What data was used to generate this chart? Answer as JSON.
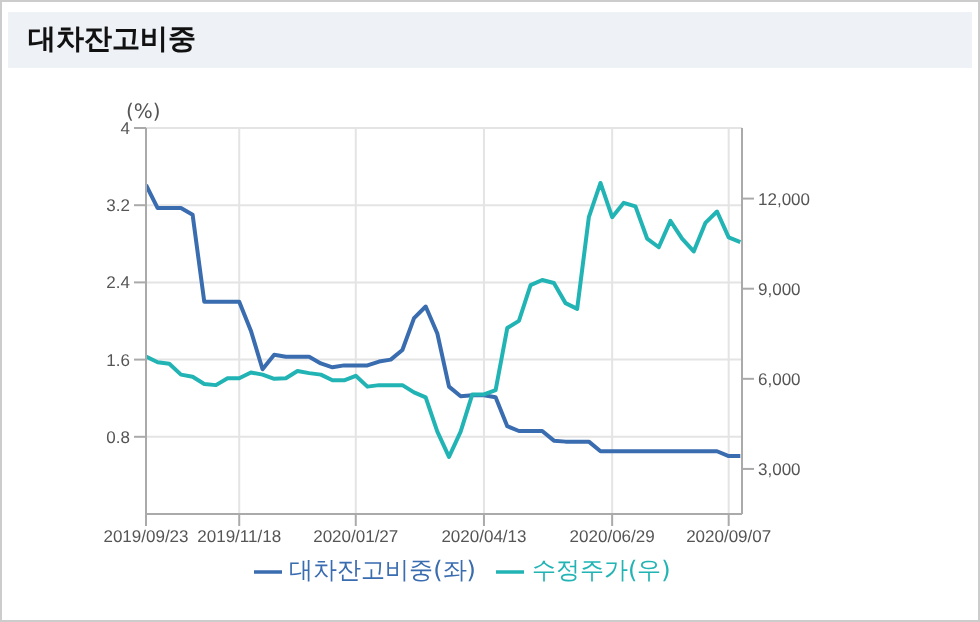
{
  "chart_data": {
    "type": "line",
    "title": "대차잔고비중",
    "ylabel": "(%)",
    "x": [
      "2019-09-23",
      "2019-09-30",
      "2019-10-07",
      "2019-10-14",
      "2019-10-21",
      "2019-10-28",
      "2019-11-04",
      "2019-11-11",
      "2019-11-18",
      "2019-11-25",
      "2019-12-02",
      "2019-12-09",
      "2019-12-16",
      "2019-12-23",
      "2019-12-30",
      "2020-01-06",
      "2020-01-13",
      "2020-01-20",
      "2020-01-27",
      "2020-02-03",
      "2020-02-10",
      "2020-02-17",
      "2020-02-24",
      "2020-03-02",
      "2020-03-09",
      "2020-03-16",
      "2020-03-23",
      "2020-03-30",
      "2020-04-06",
      "2020-04-13",
      "2020-04-20",
      "2020-04-27",
      "2020-05-04",
      "2020-05-11",
      "2020-05-18",
      "2020-05-25",
      "2020-06-01",
      "2020-06-08",
      "2020-06-15",
      "2020-06-22",
      "2020-06-29",
      "2020-07-06",
      "2020-07-13",
      "2020-07-20",
      "2020-07-27",
      "2020-08-03",
      "2020-08-10",
      "2020-08-17",
      "2020-08-24",
      "2020-08-31",
      "2020-09-07",
      "2020-09-14"
    ],
    "series": [
      {
        "name": "대차잔고비중(좌)",
        "color": "#3a6cb0",
        "values": [
          3.41,
          3.17,
          3.17,
          3.17,
          3.1,
          2.2,
          2.2,
          2.2,
          2.2,
          1.9,
          1.5,
          1.65,
          1.63,
          1.63,
          1.63,
          1.56,
          1.52,
          1.54,
          1.54,
          1.54,
          1.58,
          1.6,
          1.7,
          2.03,
          2.15,
          1.87,
          1.32,
          1.22,
          1.23,
          1.23,
          1.21,
          0.91,
          0.86,
          0.86,
          0.86,
          0.76,
          0.75,
          0.75,
          0.75,
          0.65,
          0.65,
          0.65,
          0.65,
          0.65,
          0.65,
          0.65,
          0.65,
          0.65,
          0.65,
          0.65,
          0.6,
          0.6
        ]
      },
      {
        "name": "수정주가(우)",
        "color": "#22b4b4",
        "axis": "y2",
        "values": [
          6740,
          6550,
          6500,
          6140,
          6070,
          5830,
          5790,
          6020,
          6020,
          6210,
          6140,
          6000,
          6020,
          6260,
          6190,
          6140,
          5950,
          5950,
          6100,
          5740,
          5790,
          5790,
          5790,
          5550,
          5380,
          4240,
          3400,
          4240,
          5480,
          5480,
          5620,
          7690,
          7930,
          9120,
          9290,
          9190,
          8520,
          8330,
          11380,
          12520,
          11380,
          11860,
          11740,
          10670,
          10380,
          11260,
          10670,
          10240,
          11190,
          11570,
          10710,
          10550
        ]
      }
    ],
    "xlim": [
      "2019-09-23",
      "2020-09-15"
    ],
    "xticks": [
      {
        "value": "2019-09-23",
        "label": "2019/09/23"
      },
      {
        "value": "2019-11-18",
        "label": "2019/11/18"
      },
      {
        "value": "2020-01-27",
        "label": "2020/01/27"
      },
      {
        "value": "2020-04-13",
        "label": "2020/04/13"
      },
      {
        "value": "2020-06-29",
        "label": "2020/06/29"
      },
      {
        "value": "2020-09-07",
        "label": "2020/09/07"
      }
    ],
    "ylim": [
      0,
      4
    ],
    "yticks": [
      0.8,
      1.6,
      2.4,
      3.2,
      4
    ],
    "y2lim": [
      1500,
      14350
    ],
    "y2ticks": [
      {
        "value": 3000,
        "label": "3,000"
      },
      {
        "value": 6000,
        "label": "6,000"
      },
      {
        "value": 9000,
        "label": "9,000"
      },
      {
        "value": 12000,
        "label": "12,000"
      }
    ],
    "grid": true,
    "legend": "bottom",
    "marker": "none",
    "line_style": "solid"
  }
}
